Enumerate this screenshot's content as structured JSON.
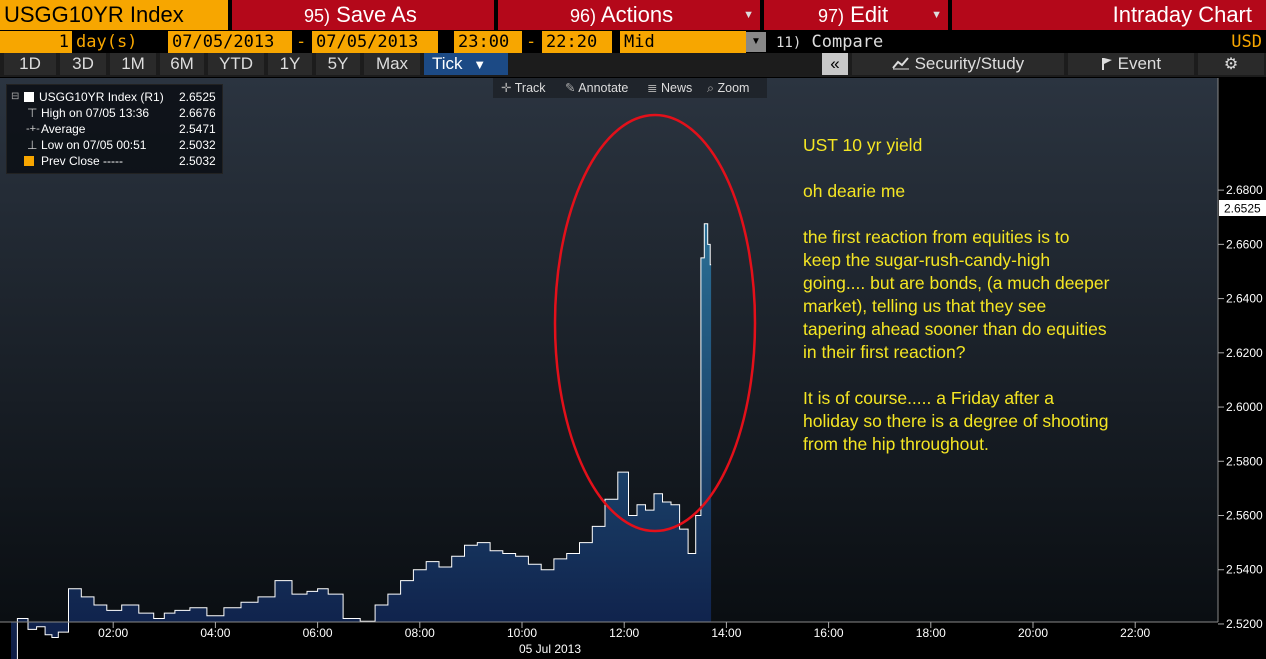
{
  "header": {
    "ticker": "USGG10YR Index",
    "save_as": {
      "num": "95)",
      "label": "Save As"
    },
    "actions": {
      "num": "96)",
      "label": "Actions"
    },
    "edit": {
      "num": "97)",
      "label": "Edit"
    },
    "title": "Intraday Chart"
  },
  "controls": {
    "period_value": "1",
    "period_unit": "day(s)",
    "start_date": "07/05/2013",
    "end_date": "07/05/2013",
    "start_time": "23:00",
    "end_time": "22:20",
    "price_type": "Mid",
    "compare_num": "11)",
    "compare_label": "Compare",
    "currency": "USD",
    "dash": "-"
  },
  "ranges": [
    "1D",
    "3D",
    "1M",
    "6M",
    "YTD",
    "1Y",
    "5Y",
    "Max"
  ],
  "active_range": "Tick",
  "side_buttons": {
    "collapse": "«",
    "security_study": "Security/Study",
    "event": "Event"
  },
  "chart_tools": [
    "Track",
    "Annotate",
    "News",
    "Zoom"
  ],
  "legend": {
    "rows": [
      {
        "label": "USGG10YR Index (R1)",
        "value": "2.6525"
      },
      {
        "label": "High on 07/05 13:36",
        "value": "2.6676"
      },
      {
        "label": "Average",
        "value": "2.5471"
      },
      {
        "label": "Low on 07/05 00:51",
        "value": "2.5032"
      },
      {
        "label": "Prev Close -----",
        "value": "2.5032"
      }
    ]
  },
  "annotation": {
    "lines": [
      "UST 10 yr yield",
      "",
      "oh dearie me",
      "",
      "the first reaction from equities is to",
      "keep the sugar-rush-candy-high",
      "going.... but are bonds, (a much deeper",
      "market), telling us that they see",
      "tapering ahead sooner than do equities",
      "in their first reaction?",
      "",
      "It is of course..... a Friday after a",
      "holiday so there is a degree of shooting",
      "from the hip throughout."
    ]
  },
  "colors": {
    "accent_orange": "#f7a600",
    "header_red": "#b4081a",
    "annotation_yellow": "#f5e623",
    "circle_red": "#e3101a",
    "area_fill_top": "#2a6f95",
    "area_fill_bottom": "#0d1a44"
  },
  "chart_data": {
    "type": "area",
    "date_label": "05 Jul 2013",
    "ylim": [
      2.5,
      2.7
    ],
    "last_value_label": "2.6525",
    "y_ticks": [
      "2.5200",
      "2.5400",
      "2.5600",
      "2.5800",
      "2.6000",
      "2.6200",
      "2.6400",
      "2.6600",
      "2.6800"
    ],
    "x_ticks": [
      "02:00",
      "04:00",
      "06:00",
      "08:00",
      "10:00",
      "12:00",
      "14:00",
      "16:00",
      "18:00",
      "20:00",
      "22:00"
    ],
    "grid": false,
    "series": [
      {
        "name": "USGG10YR Index",
        "x": [
          "00:00",
          "00:15",
          "00:25",
          "00:35",
          "00:45",
          "00:51",
          "01:00",
          "01:15",
          "01:30",
          "01:45",
          "02:00",
          "02:20",
          "02:40",
          "02:55",
          "03:05",
          "03:20",
          "03:40",
          "04:00",
          "04:20",
          "04:40",
          "05:00",
          "05:20",
          "05:40",
          "05:55",
          "06:05",
          "06:20",
          "06:40",
          "07:00",
          "07:15",
          "07:30",
          "07:45",
          "08:00",
          "08:15",
          "08:30",
          "08:45",
          "09:00",
          "09:15",
          "09:30",
          "09:45",
          "10:00",
          "10:15",
          "10:30",
          "10:45",
          "11:00",
          "11:15",
          "11:30",
          "11:45",
          "12:00",
          "12:10",
          "12:20",
          "12:30",
          "12:40",
          "12:50",
          "13:00",
          "13:10",
          "13:20",
          "13:28",
          "13:32",
          "13:36",
          "13:40",
          "13:42"
        ],
        "values": [
          2.5032,
          2.522,
          2.518,
          2.519,
          2.516,
          2.515,
          2.517,
          2.533,
          2.53,
          2.527,
          2.525,
          2.527,
          2.524,
          2.522,
          2.524,
          2.525,
          2.526,
          2.523,
          2.526,
          2.528,
          2.53,
          2.536,
          2.531,
          2.532,
          2.533,
          2.531,
          2.522,
          2.521,
          2.527,
          2.531,
          2.536,
          2.54,
          2.543,
          2.541,
          2.545,
          2.549,
          2.55,
          2.547,
          2.546,
          2.545,
          2.542,
          2.54,
          2.544,
          2.546,
          2.55,
          2.556,
          2.566,
          2.576,
          2.56,
          2.564,
          2.562,
          2.568,
          2.565,
          2.564,
          2.555,
          2.546,
          2.56,
          2.655,
          2.6676,
          2.66,
          2.6525
        ]
      }
    ]
  }
}
